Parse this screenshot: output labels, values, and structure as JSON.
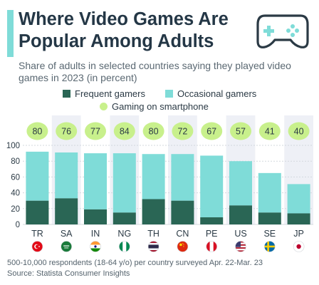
{
  "header": {
    "title": "Where Video Games Are Popular Among Adults",
    "subtitle": "Share of adults in selected countries saying they played video games in 2023 (in percent)"
  },
  "icons": {
    "controller": "gamepad-icon"
  },
  "legend": {
    "frequent": "Frequent gamers",
    "occasional": "Occasional gamers",
    "smartphone": "Gaming on smartphone"
  },
  "colors": {
    "frequent": "#2a6655",
    "occasional": "#7fdcd8",
    "smartphone": "#c8f08c",
    "accent": "#7fdcd8",
    "band": "#eef0f6"
  },
  "chart_data": {
    "type": "bar",
    "stacked": true,
    "categories": [
      "TR",
      "SA",
      "IN",
      "NG",
      "TH",
      "CN",
      "PE",
      "US",
      "SE",
      "JP"
    ],
    "flags": [
      "flag-turkey-icon",
      "flag-saudi-arabia-icon",
      "flag-india-icon",
      "flag-nigeria-icon",
      "flag-thailand-icon",
      "flag-china-icon",
      "flag-peru-icon",
      "flag-usa-icon",
      "flag-sweden-icon",
      "flag-japan-icon"
    ],
    "series": [
      {
        "name": "Frequent gamers",
        "values": [
          30,
          33,
          19,
          15,
          32,
          30,
          9,
          24,
          15,
          14
        ]
      },
      {
        "name": "Occasional gamers",
        "values": [
          62,
          58,
          71,
          75,
          57,
          59,
          78,
          56,
          50,
          37
        ]
      }
    ],
    "smartphone": {
      "name": "Gaming on smartphone",
      "values": [
        80,
        76,
        77,
        84,
        80,
        72,
        67,
        57,
        41,
        40
      ]
    },
    "ylim": [
      0,
      100
    ],
    "yticks": [
      0,
      20,
      40,
      60,
      80,
      100
    ],
    "grid": true,
    "legend_position": "top"
  },
  "footer": {
    "note": "500-10,000 respondents (18-64 y/o) per country surveyed Apr. 22-Mar. 23",
    "source": "Source: Statista Consumer Insights"
  }
}
